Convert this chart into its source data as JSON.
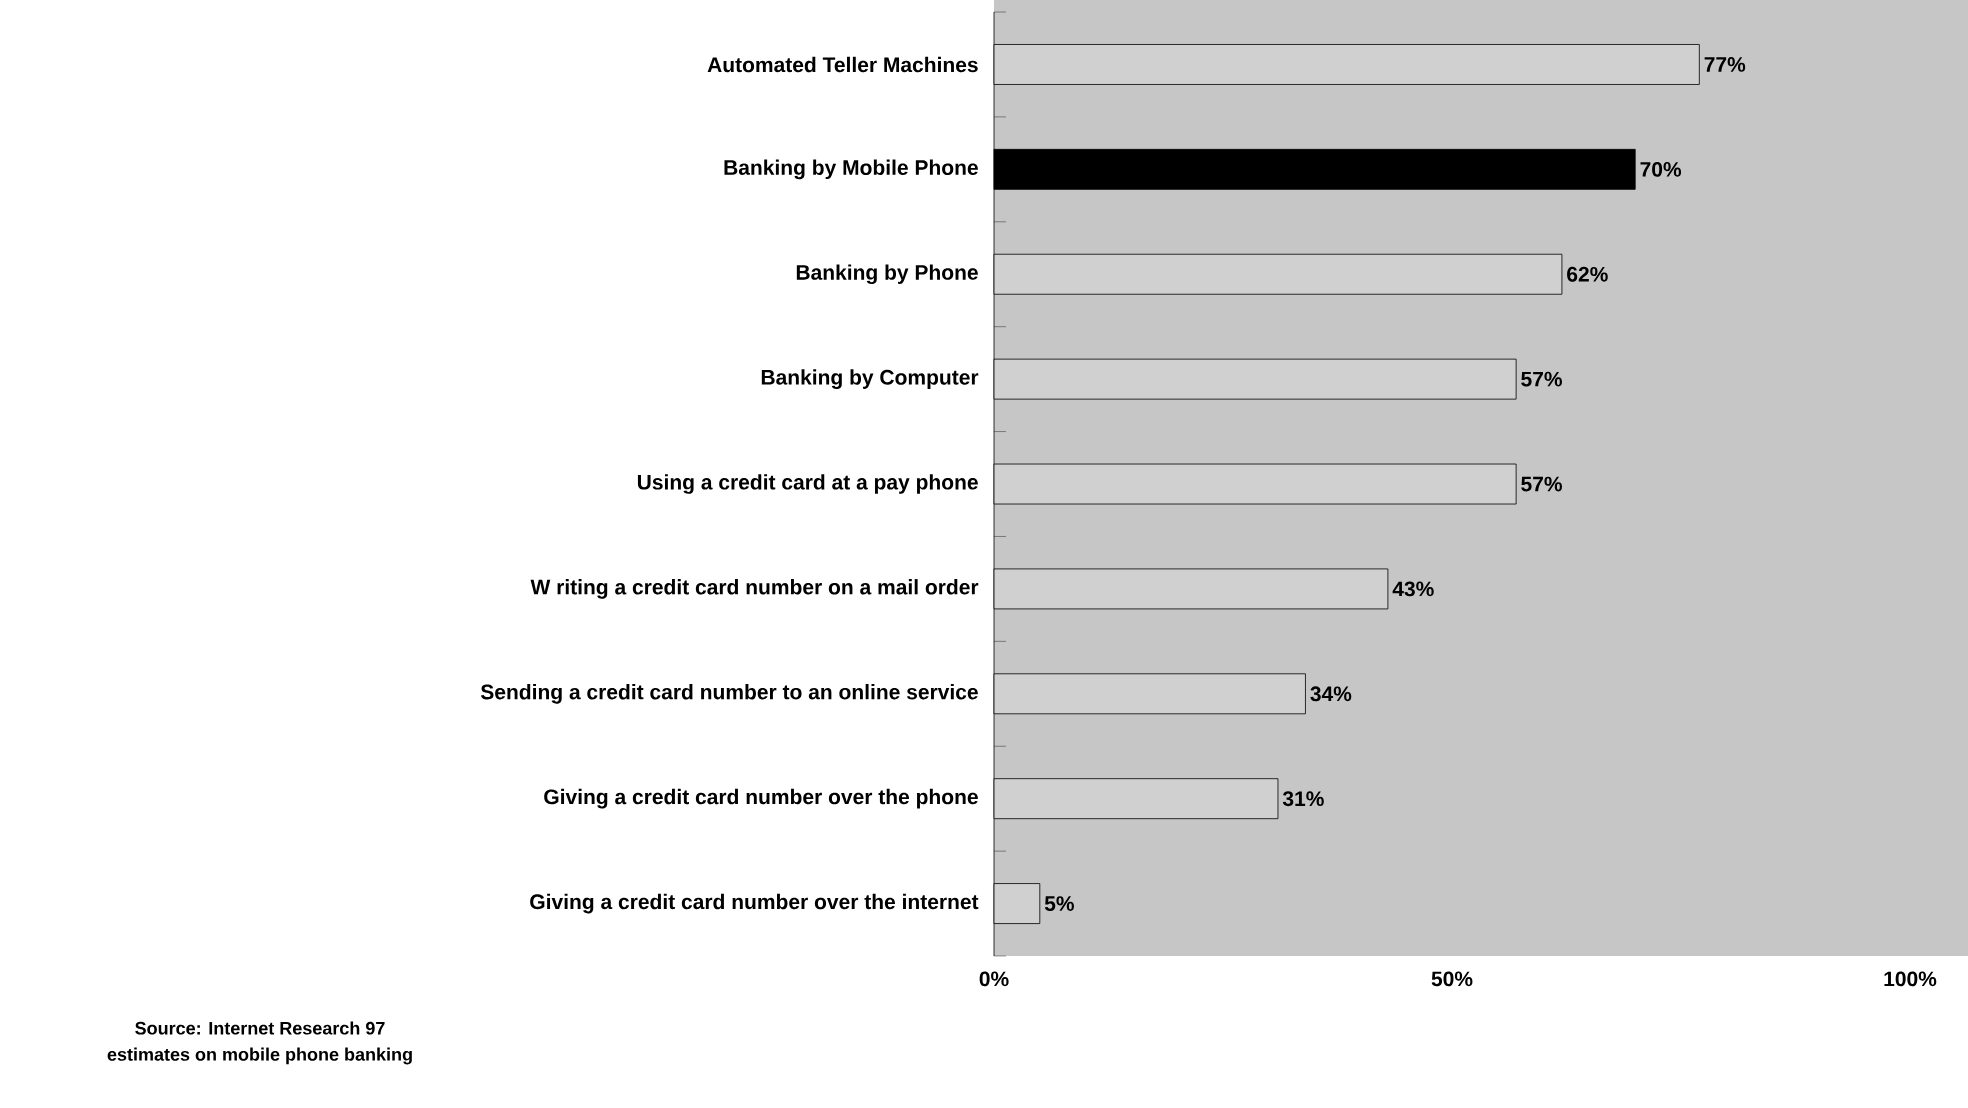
{
  "chart_data": {
    "type": "bar",
    "orientation": "horizontal",
    "categories": [
      "Automated Teller Machines",
      "Banking by Mobile Phone",
      "Banking by Phone",
      "Banking by Computer",
      "Using a credit card at a pay phone",
      "W riting a credit card number on a mail order",
      "Sending a credit card number to an online service",
      "Giving a credit card number over the phone",
      "Giving a credit card number over the internet"
    ],
    "values": [
      77,
      70,
      62,
      57,
      57,
      43,
      34,
      31,
      5
    ],
    "value_labels": [
      "77%",
      "70%",
      "62%",
      "57%",
      "57%",
      "43%",
      "34%",
      "31%",
      "5%"
    ],
    "colors": [
      "#d0d0d0",
      "#000000",
      "#d0d0d0",
      "#d0d0d0",
      "#d0d0d0",
      "#d0d0d0",
      "#d0d0d0",
      "#d0d0d0",
      "#d0d0d0"
    ],
    "xlim": [
      0,
      100
    ],
    "xticks": [
      {
        "value": 0,
        "label": "0%"
      },
      {
        "value": 50,
        "label": "50%"
      },
      {
        "value": 100,
        "label": "100%"
      }
    ],
    "annotations": [
      "Source: Internet Research 97",
      "estimates on mobile phone banking"
    ]
  }
}
